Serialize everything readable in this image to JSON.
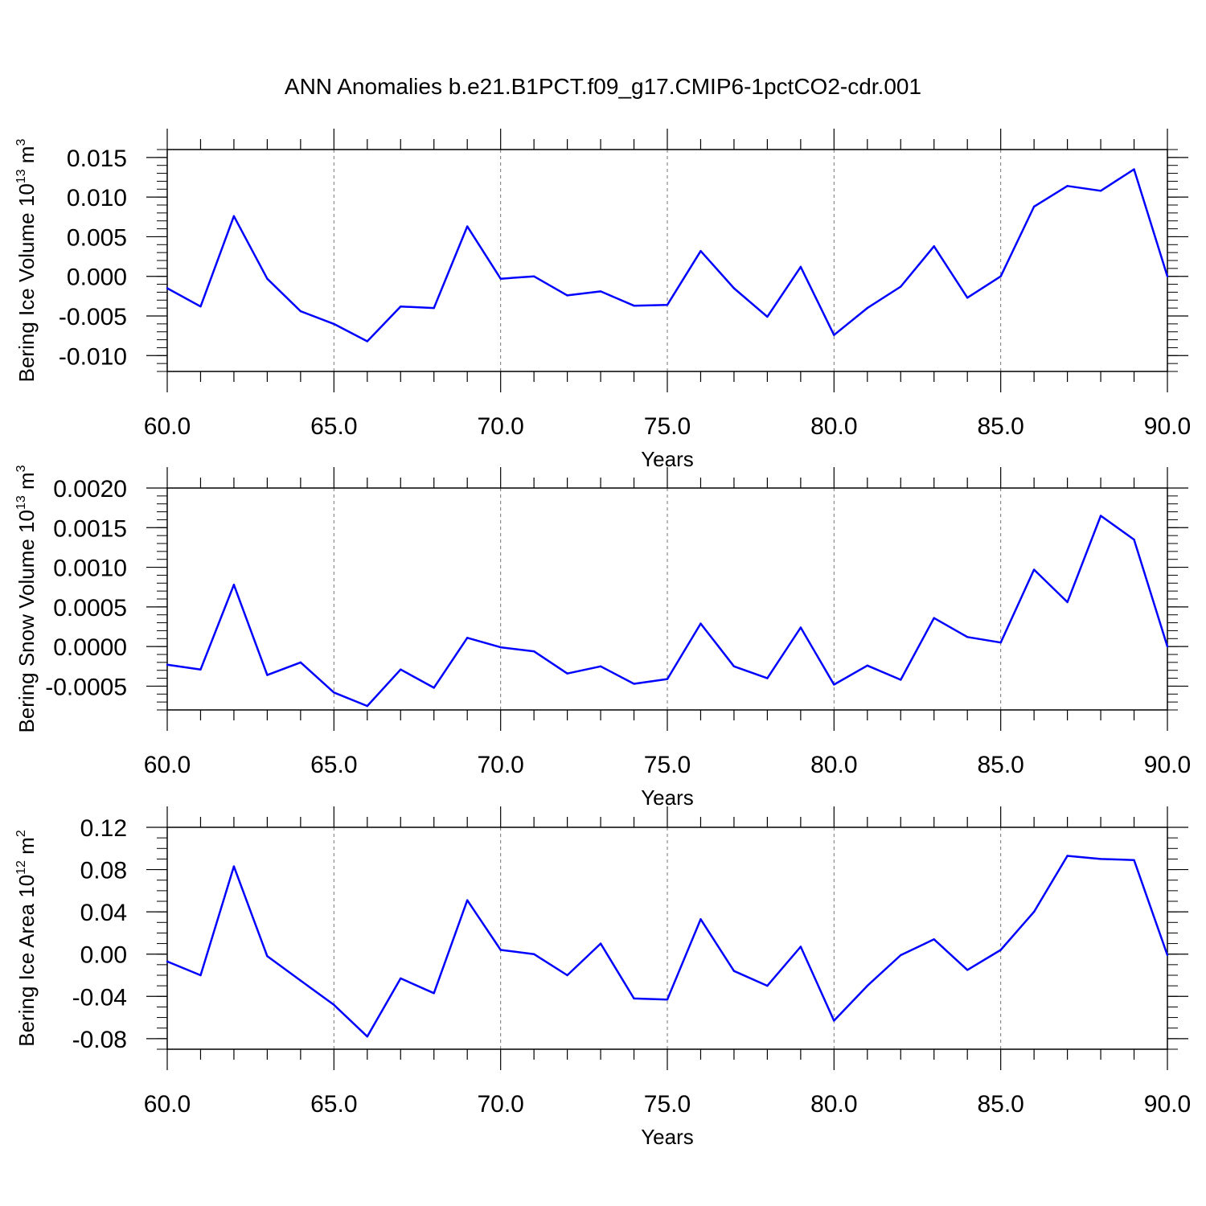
{
  "title": "ANN Anomalies b.e21.B1PCT.f09_g17.CMIP6-1pctCO2-cdr.001",
  "colors": {
    "line": "#0000ff",
    "axis": "#000000",
    "grid": "#777777",
    "background": "#ffffff"
  },
  "chart_data": [
    {
      "type": "line",
      "ylabel": {
        "main": "Bering Ice Volume 10",
        "sup": "13",
        "tail": " m",
        "tailsup": "3"
      },
      "xlabel": "Years",
      "xlim": [
        60,
        90
      ],
      "ylim": [
        -0.012,
        0.016
      ],
      "xticks": [
        "60.0",
        "65.0",
        "70.0",
        "75.0",
        "80.0",
        "85.0",
        "90.0"
      ],
      "yticks": [
        {
          "v": 0.015,
          "label": "0.015"
        },
        {
          "v": 0.01,
          "label": "0.010"
        },
        {
          "v": 0.005,
          "label": "0.005"
        },
        {
          "v": 0.0,
          "label": "0.000"
        },
        {
          "v": -0.005,
          "label": "-0.005"
        },
        {
          "v": -0.01,
          "label": "-0.010"
        }
      ],
      "yminor_step": 0.001,
      "grid": "vertical-dashed",
      "x": [
        60,
        61,
        62,
        63,
        64,
        65,
        66,
        67,
        68,
        69,
        70,
        71,
        72,
        73,
        74,
        75,
        76,
        77,
        78,
        79,
        80,
        81,
        82,
        83,
        84,
        85,
        86,
        87,
        88,
        89,
        90
      ],
      "values": [
        -0.0015,
        -0.0038,
        0.0076,
        -0.0003,
        -0.0044,
        -0.006,
        -0.0082,
        -0.0038,
        -0.004,
        0.0063,
        -0.0003,
        0.0,
        -0.0024,
        -0.0019,
        -0.0037,
        -0.0036,
        0.0032,
        -0.0015,
        -0.0051,
        0.0012,
        -0.0074,
        -0.004,
        -0.0013,
        0.0038,
        -0.0027,
        0.0,
        0.0088,
        0.0114,
        0.0108,
        0.0135,
        0.0
      ]
    },
    {
      "type": "line",
      "ylabel": {
        "main": "Bering Snow Volume 10",
        "sup": "13",
        "tail": " m",
        "tailsup": "3"
      },
      "xlabel": "Years",
      "xlim": [
        60,
        90
      ],
      "ylim": [
        -0.0008,
        0.002
      ],
      "xticks": [
        "60.0",
        "65.0",
        "70.0",
        "75.0",
        "80.0",
        "85.0",
        "90.0"
      ],
      "yticks": [
        {
          "v": 0.002,
          "label": "0.0020"
        },
        {
          "v": 0.0015,
          "label": "0.0015"
        },
        {
          "v": 0.001,
          "label": "0.0010"
        },
        {
          "v": 0.0005,
          "label": "0.0005"
        },
        {
          "v": 0.0,
          "label": "0.0000"
        },
        {
          "v": -0.0005,
          "label": "-0.0005"
        }
      ],
      "yminor_step": 0.0001,
      "grid": "vertical-dashed",
      "x": [
        60,
        61,
        62,
        63,
        64,
        65,
        66,
        67,
        68,
        69,
        70,
        71,
        72,
        73,
        74,
        75,
        76,
        77,
        78,
        79,
        80,
        81,
        82,
        83,
        84,
        85,
        86,
        87,
        88,
        89,
        90
      ],
      "values": [
        -0.00023,
        -0.00029,
        0.00078,
        -0.00036,
        -0.0002,
        -0.00058,
        -0.00075,
        -0.00029,
        -0.00052,
        0.00011,
        -1e-05,
        -6e-05,
        -0.00034,
        -0.00025,
        -0.00047,
        -0.00041,
        0.00029,
        -0.00025,
        -0.0004,
        0.00024,
        -0.00048,
        -0.00024,
        -0.00042,
        0.00036,
        0.00012,
        5e-05,
        0.00097,
        0.00056,
        0.00165,
        0.00135,
        0.0
      ]
    },
    {
      "type": "line",
      "ylabel": {
        "main": "Bering Ice Area 10",
        "sup": "12",
        "tail": " m",
        "tailsup": "2"
      },
      "xlabel": "Years",
      "xlim": [
        60,
        90
      ],
      "ylim": [
        -0.09,
        0.12
      ],
      "xticks": [
        "60.0",
        "65.0",
        "70.0",
        "75.0",
        "80.0",
        "85.0",
        "90.0"
      ],
      "yticks": [
        {
          "v": 0.12,
          "label": "0.12"
        },
        {
          "v": 0.08,
          "label": "0.08"
        },
        {
          "v": 0.04,
          "label": "0.04"
        },
        {
          "v": 0.0,
          "label": "0.00"
        },
        {
          "v": -0.04,
          "label": "-0.04"
        },
        {
          "v": -0.08,
          "label": "-0.08"
        }
      ],
      "yminor_step": 0.01,
      "grid": "vertical-dashed",
      "x": [
        60,
        61,
        62,
        63,
        64,
        65,
        66,
        67,
        68,
        69,
        70,
        71,
        72,
        73,
        74,
        75,
        76,
        77,
        78,
        79,
        80,
        81,
        82,
        83,
        84,
        85,
        86,
        87,
        88,
        89,
        90
      ],
      "values": [
        -0.007,
        -0.02,
        0.083,
        -0.002,
        -0.025,
        -0.048,
        -0.078,
        -0.023,
        -0.037,
        0.051,
        0.004,
        0.0,
        -0.02,
        0.01,
        -0.042,
        -0.043,
        0.033,
        -0.016,
        -0.03,
        0.007,
        -0.063,
        -0.03,
        -0.001,
        0.014,
        -0.015,
        0.004,
        0.04,
        0.093,
        0.09,
        0.089,
        -0.001
      ]
    }
  ]
}
